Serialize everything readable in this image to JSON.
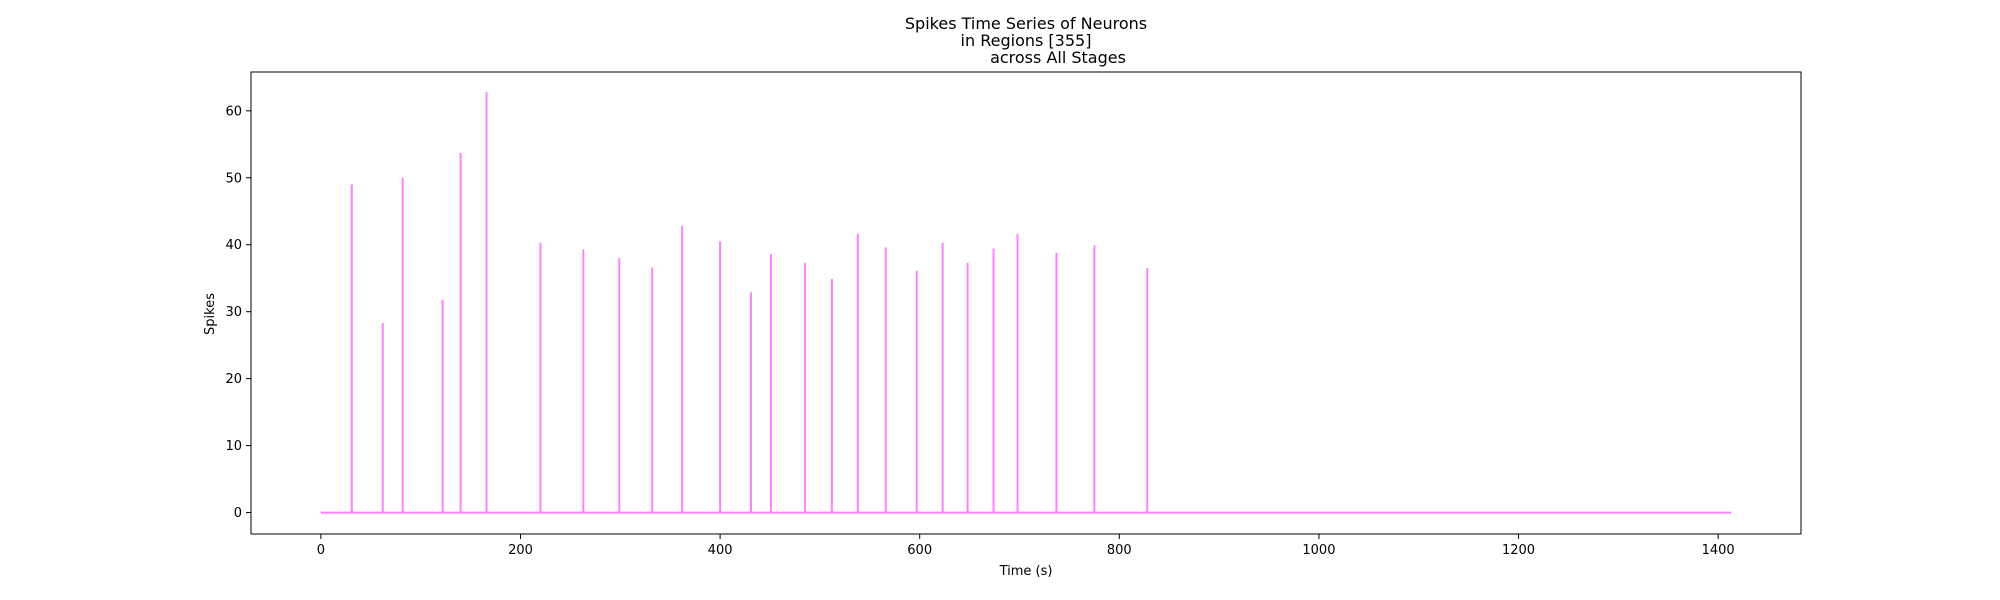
{
  "chart_data": {
    "type": "line",
    "title_lines": [
      "Spikes Time Series of Neurons",
      "in Regions [355]",
      "across All Stages"
    ],
    "xlabel": "Time (s)",
    "ylabel": "Spikes",
    "xlim": [
      -70,
      1483
    ],
    "ylim": [
      -3.2,
      65.8
    ],
    "xticks": [
      0,
      200,
      400,
      600,
      800,
      1000,
      1200,
      1400
    ],
    "yticks": [
      0,
      10,
      20,
      30,
      40,
      50,
      60
    ],
    "grid": false,
    "line_color": "#ff80ff",
    "series": [
      {
        "baseline_x_range": [
          0,
          1413
        ],
        "spikes": [
          {
            "x": 31,
            "y": 49.0
          },
          {
            "x": 62,
            "y": 28.3
          },
          {
            "x": 82,
            "y": 50.0
          },
          {
            "x": 122,
            "y": 31.8
          },
          {
            "x": 140,
            "y": 53.7
          },
          {
            "x": 166,
            "y": 62.8
          },
          {
            "x": 220,
            "y": 40.3
          },
          {
            "x": 263,
            "y": 39.3
          },
          {
            "x": 299,
            "y": 38.0
          },
          {
            "x": 332,
            "y": 36.6
          },
          {
            "x": 362,
            "y": 42.8
          },
          {
            "x": 400,
            "y": 40.5
          },
          {
            "x": 431,
            "y": 32.9
          },
          {
            "x": 451,
            "y": 38.6
          },
          {
            "x": 485,
            "y": 37.3
          },
          {
            "x": 512,
            "y": 34.9
          },
          {
            "x": 538,
            "y": 41.6
          },
          {
            "x": 566,
            "y": 39.6
          },
          {
            "x": 597,
            "y": 36.1
          },
          {
            "x": 623,
            "y": 40.3
          },
          {
            "x": 648,
            "y": 37.3
          },
          {
            "x": 674,
            "y": 39.4
          },
          {
            "x": 698,
            "y": 41.6
          },
          {
            "x": 737,
            "y": 38.8
          },
          {
            "x": 775,
            "y": 39.9
          },
          {
            "x": 828,
            "y": 36.5
          }
        ]
      }
    ]
  }
}
